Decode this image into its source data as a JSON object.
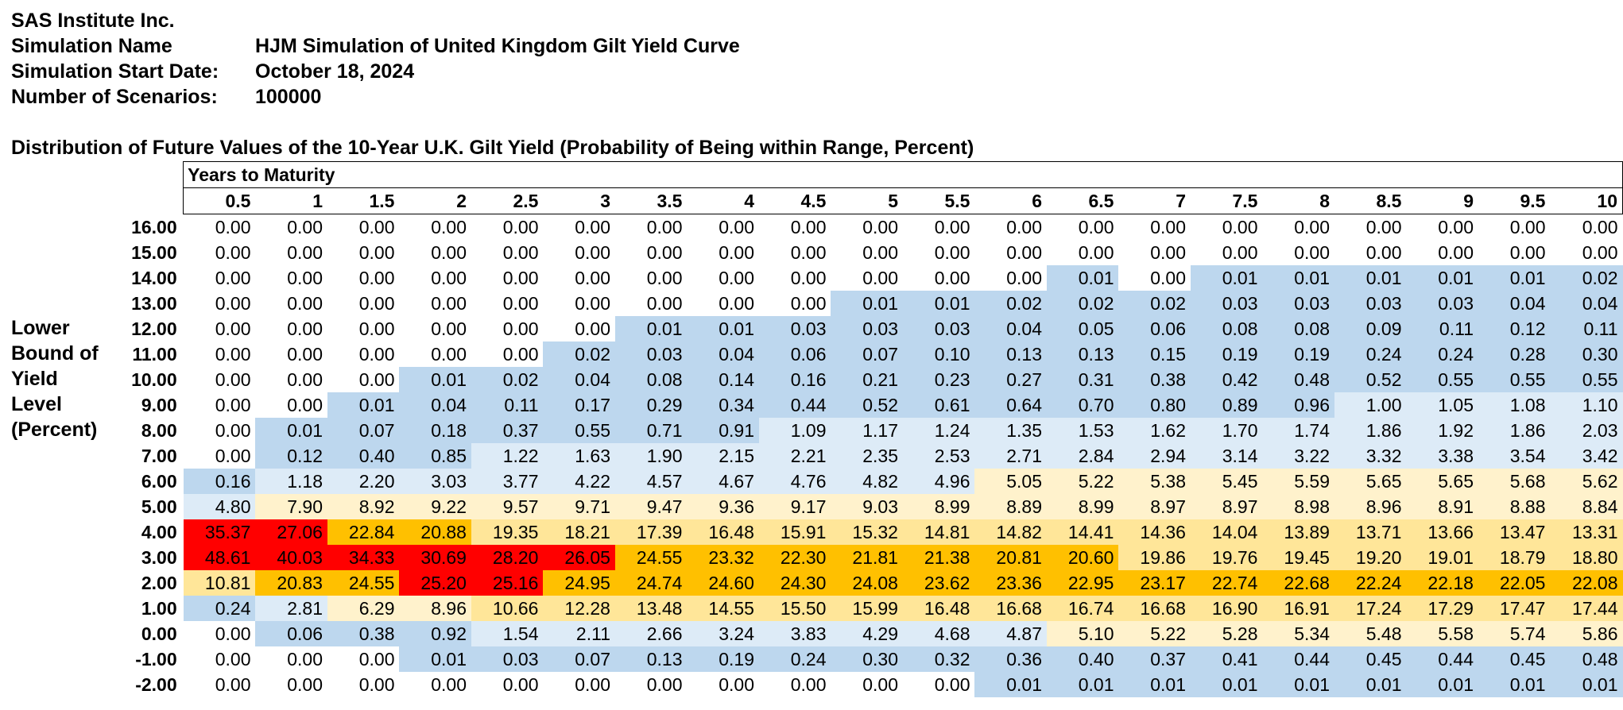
{
  "header": {
    "company": "SAS Institute Inc.",
    "fields": [
      {
        "label": "Simulation Name",
        "value": "HJM Simulation of United Kingdom Gilt Yield Curve"
      },
      {
        "label": "Simulation Start Date:",
        "value": "October 18, 2024"
      },
      {
        "label": "Number of Scenarios:",
        "value": "100000"
      }
    ]
  },
  "table": {
    "title": "Distribution of Future Values of the 10-Year U.K. Gilt Yield (Probability of Being within Range, Percent)",
    "col_group_label": "Years to Maturity",
    "row_axis_label": [
      "Lower",
      "Bound of",
      "Yield",
      "Level",
      "(Percent)"
    ],
    "columns": [
      "0.5",
      "1",
      "1.5",
      "2",
      "2.5",
      "3",
      "3.5",
      "4",
      "4.5",
      "5",
      "5.5",
      "6",
      "6.5",
      "7",
      "7.5",
      "8",
      "8.5",
      "9",
      "9.5",
      "10"
    ],
    "rows": [
      {
        "label": "16.00",
        "cells": [
          "0.00",
          "0.00",
          "0.00",
          "0.00",
          "0.00",
          "0.00",
          "0.00",
          "0.00",
          "0.00",
          "0.00",
          "0.00",
          "0.00",
          "0.00",
          "0.00",
          "0.00",
          "0.00",
          "0.00",
          "0.00",
          "0.00",
          "0.00"
        ]
      },
      {
        "label": "15.00",
        "cells": [
          "0.00",
          "0.00",
          "0.00",
          "0.00",
          "0.00",
          "0.00",
          "0.00",
          "0.00",
          "0.00",
          "0.00",
          "0.00",
          "0.00",
          "0.00",
          "0.00",
          "0.00",
          "0.00",
          "0.00",
          "0.00",
          "0.00",
          "0.00"
        ]
      },
      {
        "label": "14.00",
        "cells": [
          "0.00",
          "0.00",
          "0.00",
          "0.00",
          "0.00",
          "0.00",
          "0.00",
          "0.00",
          "0.00",
          "0.00",
          "0.00",
          "0.00",
          "0.01",
          "0.00",
          "0.01",
          "0.01",
          "0.01",
          "0.01",
          "0.01",
          "0.02"
        ]
      },
      {
        "label": "13.00",
        "cells": [
          "0.00",
          "0.00",
          "0.00",
          "0.00",
          "0.00",
          "0.00",
          "0.00",
          "0.00",
          "0.00",
          "0.01",
          "0.01",
          "0.02",
          "0.02",
          "0.02",
          "0.03",
          "0.03",
          "0.03",
          "0.03",
          "0.04",
          "0.04"
        ]
      },
      {
        "label": "12.00",
        "cells": [
          "0.00",
          "0.00",
          "0.00",
          "0.00",
          "0.00",
          "0.00",
          "0.01",
          "0.01",
          "0.03",
          "0.03",
          "0.03",
          "0.04",
          "0.05",
          "0.06",
          "0.08",
          "0.08",
          "0.09",
          "0.11",
          "0.12",
          "0.11"
        ]
      },
      {
        "label": "11.00",
        "cells": [
          "0.00",
          "0.00",
          "0.00",
          "0.00",
          "0.00",
          "0.02",
          "0.03",
          "0.04",
          "0.06",
          "0.07",
          "0.10",
          "0.13",
          "0.13",
          "0.15",
          "0.19",
          "0.19",
          "0.24",
          "0.24",
          "0.28",
          "0.30"
        ]
      },
      {
        "label": "10.00",
        "cells": [
          "0.00",
          "0.00",
          "0.00",
          "0.01",
          "0.02",
          "0.04",
          "0.08",
          "0.14",
          "0.16",
          "0.21",
          "0.23",
          "0.27",
          "0.31",
          "0.38",
          "0.42",
          "0.48",
          "0.52",
          "0.55",
          "0.55",
          "0.55"
        ]
      },
      {
        "label": "9.00",
        "cells": [
          "0.00",
          "0.00",
          "0.01",
          "0.04",
          "0.11",
          "0.17",
          "0.29",
          "0.34",
          "0.44",
          "0.52",
          "0.61",
          "0.64",
          "0.70",
          "0.80",
          "0.89",
          "0.96",
          "1.00",
          "1.05",
          "1.08",
          "1.10"
        ]
      },
      {
        "label": "8.00",
        "cells": [
          "0.00",
          "0.01",
          "0.07",
          "0.18",
          "0.37",
          "0.55",
          "0.71",
          "0.91",
          "1.09",
          "1.17",
          "1.24",
          "1.35",
          "1.53",
          "1.62",
          "1.70",
          "1.74",
          "1.86",
          "1.92",
          "1.86",
          "2.03"
        ]
      },
      {
        "label": "7.00",
        "cells": [
          "0.00",
          "0.12",
          "0.40",
          "0.85",
          "1.22",
          "1.63",
          "1.90",
          "2.15",
          "2.21",
          "2.35",
          "2.53",
          "2.71",
          "2.84",
          "2.94",
          "3.14",
          "3.22",
          "3.32",
          "3.38",
          "3.54",
          "3.42"
        ]
      },
      {
        "label": "6.00",
        "cells": [
          "0.16",
          "1.18",
          "2.20",
          "3.03",
          "3.77",
          "4.22",
          "4.57",
          "4.67",
          "4.76",
          "4.82",
          "4.96",
          "5.05",
          "5.22",
          "5.38",
          "5.45",
          "5.59",
          "5.65",
          "5.65",
          "5.68",
          "5.62"
        ]
      },
      {
        "label": "5.00",
        "cells": [
          "4.80",
          "7.90",
          "8.92",
          "9.22",
          "9.57",
          "9.71",
          "9.47",
          "9.36",
          "9.17",
          "9.03",
          "8.99",
          "8.89",
          "8.99",
          "8.97",
          "8.97",
          "8.98",
          "8.96",
          "8.91",
          "8.88",
          "8.84"
        ]
      },
      {
        "label": "4.00",
        "cells": [
          "35.37",
          "27.06",
          "22.84",
          "20.88",
          "19.35",
          "18.21",
          "17.39",
          "16.48",
          "15.91",
          "15.32",
          "14.81",
          "14.82",
          "14.41",
          "14.36",
          "14.04",
          "13.89",
          "13.71",
          "13.66",
          "13.47",
          "13.31"
        ]
      },
      {
        "label": "3.00",
        "cells": [
          "48.61",
          "40.03",
          "34.33",
          "30.69",
          "28.20",
          "26.05",
          "24.55",
          "23.32",
          "22.30",
          "21.81",
          "21.38",
          "20.81",
          "20.60",
          "19.86",
          "19.76",
          "19.45",
          "19.20",
          "19.01",
          "18.79",
          "18.80"
        ]
      },
      {
        "label": "2.00",
        "cells": [
          "10.81",
          "20.83",
          "24.55",
          "25.20",
          "25.16",
          "24.95",
          "24.74",
          "24.60",
          "24.30",
          "24.08",
          "23.62",
          "23.36",
          "22.95",
          "23.17",
          "22.74",
          "22.68",
          "22.24",
          "22.18",
          "22.05",
          "22.08"
        ]
      },
      {
        "label": "1.00",
        "cells": [
          "0.24",
          "2.81",
          "6.29",
          "8.96",
          "10.66",
          "12.28",
          "13.48",
          "14.55",
          "15.50",
          "15.99",
          "16.48",
          "16.68",
          "16.74",
          "16.68",
          "16.90",
          "16.91",
          "17.24",
          "17.29",
          "17.47",
          "17.44"
        ]
      },
      {
        "label": "0.00",
        "cells": [
          "0.00",
          "0.06",
          "0.38",
          "0.92",
          "1.54",
          "2.11",
          "2.66",
          "3.24",
          "3.83",
          "4.29",
          "4.68",
          "4.87",
          "5.10",
          "5.22",
          "5.28",
          "5.34",
          "5.48",
          "5.58",
          "5.74",
          "5.86"
        ]
      },
      {
        "label": "-1.00",
        "cells": [
          "0.00",
          "0.00",
          "0.00",
          "0.01",
          "0.03",
          "0.07",
          "0.13",
          "0.19",
          "0.24",
          "0.30",
          "0.32",
          "0.36",
          "0.40",
          "0.37",
          "0.41",
          "0.44",
          "0.45",
          "0.44",
          "0.45",
          "0.48"
        ]
      },
      {
        "label": "-2.00",
        "cells": [
          "0.00",
          "0.00",
          "0.00",
          "0.00",
          "0.00",
          "0.00",
          "0.00",
          "0.00",
          "0.00",
          "0.00",
          "0.00",
          "0.01",
          "0.01",
          "0.01",
          "0.01",
          "0.01",
          "0.01",
          "0.01",
          "0.01",
          "0.01"
        ]
      }
    ],
    "color_scale": {
      "white": "#ffffff",
      "blue": "#bdd7ee",
      "light_blue": "#ddebf7",
      "light_yellow": "#fff2cc",
      "yellow": "#ffe699",
      "orange": "#ffc000",
      "red": "#ff0000"
    }
  }
}
